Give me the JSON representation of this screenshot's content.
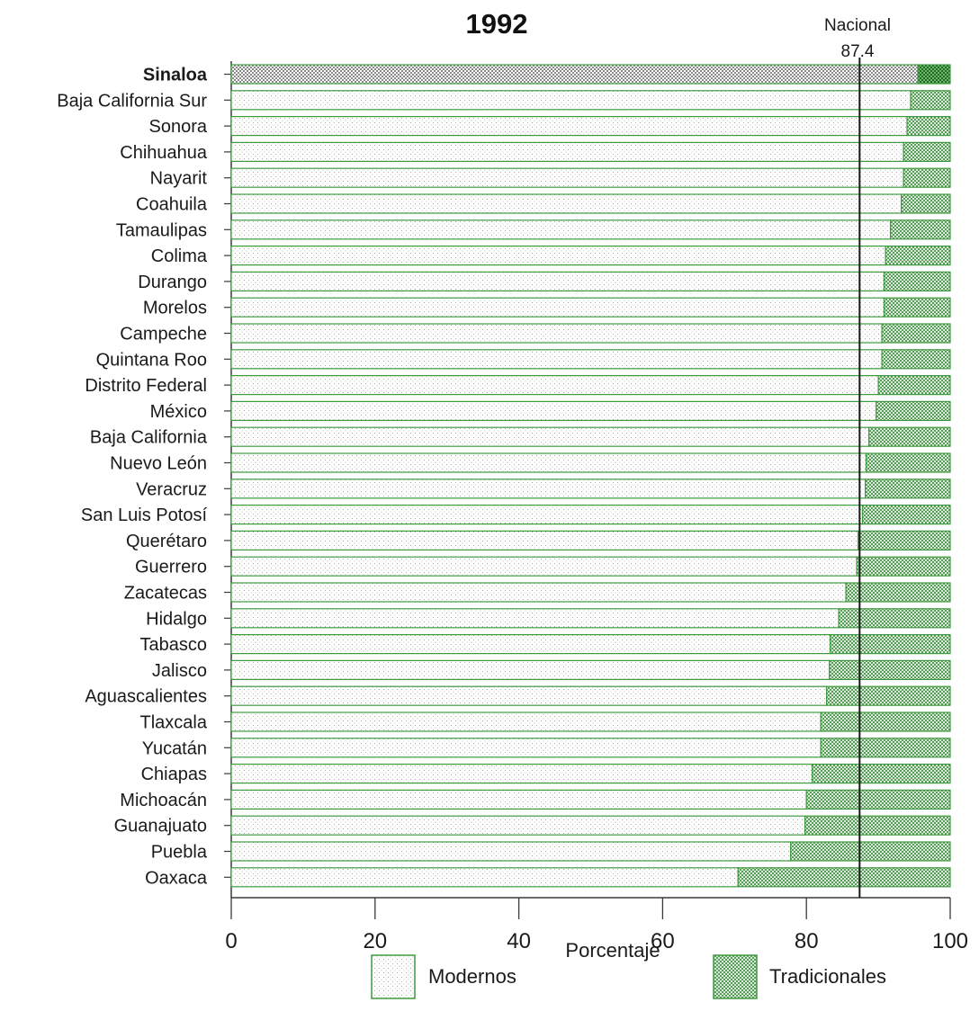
{
  "chart_data": {
    "type": "bar",
    "orientation": "horizontal",
    "stacked": true,
    "title": "1992",
    "xlabel": "Porcentaje",
    "xlim": [
      0,
      100
    ],
    "xticks": [
      "0",
      "20",
      "40",
      "60",
      "80",
      "100"
    ],
    "highlighted_category": "Sinaloa",
    "categories": [
      "Sinaloa",
      "Baja California Sur",
      "Sonora",
      "Chihuahua",
      "Nayarit",
      "Coahuila",
      "Tamaulipas",
      "Colima",
      "Durango",
      "Morelos",
      "Campeche",
      "Quintana Roo",
      "Distrito Federal",
      "México",
      "Baja California",
      "Nuevo León",
      "Veracruz",
      "San Luis Potosí",
      "Querétaro",
      "Guerrero",
      "Zacatecas",
      "Hidalgo",
      "Tabasco",
      "Jalisco",
      "Aguascalientes",
      "Tlaxcala",
      "Yucatán",
      "Chiapas",
      "Michoacán",
      "Guanajuato",
      "Puebla",
      "Oaxaca"
    ],
    "series": [
      {
        "name": "Modernos",
        "values": [
          95.5,
          94.5,
          94.0,
          93.5,
          93.5,
          93.2,
          91.7,
          91.0,
          90.8,
          90.8,
          90.5,
          90.5,
          90.0,
          89.7,
          88.7,
          88.3,
          88.2,
          87.8,
          87.2,
          87.0,
          85.5,
          84.5,
          83.3,
          83.2,
          82.8,
          82.0,
          82.0,
          80.8,
          80.0,
          79.8,
          77.8,
          70.5
        ]
      },
      {
        "name": "Tradicionales",
        "values": [
          4.5,
          5.5,
          6.0,
          6.5,
          6.5,
          6.8,
          8.3,
          9.0,
          9.2,
          9.2,
          9.5,
          9.5,
          10.0,
          10.3,
          11.3,
          11.7,
          11.8,
          12.2,
          12.8,
          13.0,
          14.5,
          15.5,
          16.7,
          16.8,
          17.2,
          18.0,
          18.0,
          19.2,
          20.0,
          20.2,
          22.2,
          29.5
        ]
      }
    ],
    "reference_line": {
      "label": "Nacional",
      "value": 87.4,
      "value_label": "87.4"
    },
    "legend": {
      "placement": "bottom",
      "items": [
        "Modernos",
        "Tradicionales"
      ]
    },
    "colors": {
      "bar_outline": "#3f9a3f",
      "modern_dots": "#9a9a9a",
      "traditional_pattern": "#2f7f2f",
      "highlight_fill": "#2e8b2e",
      "reference_line": "#1a1a1a"
    }
  }
}
